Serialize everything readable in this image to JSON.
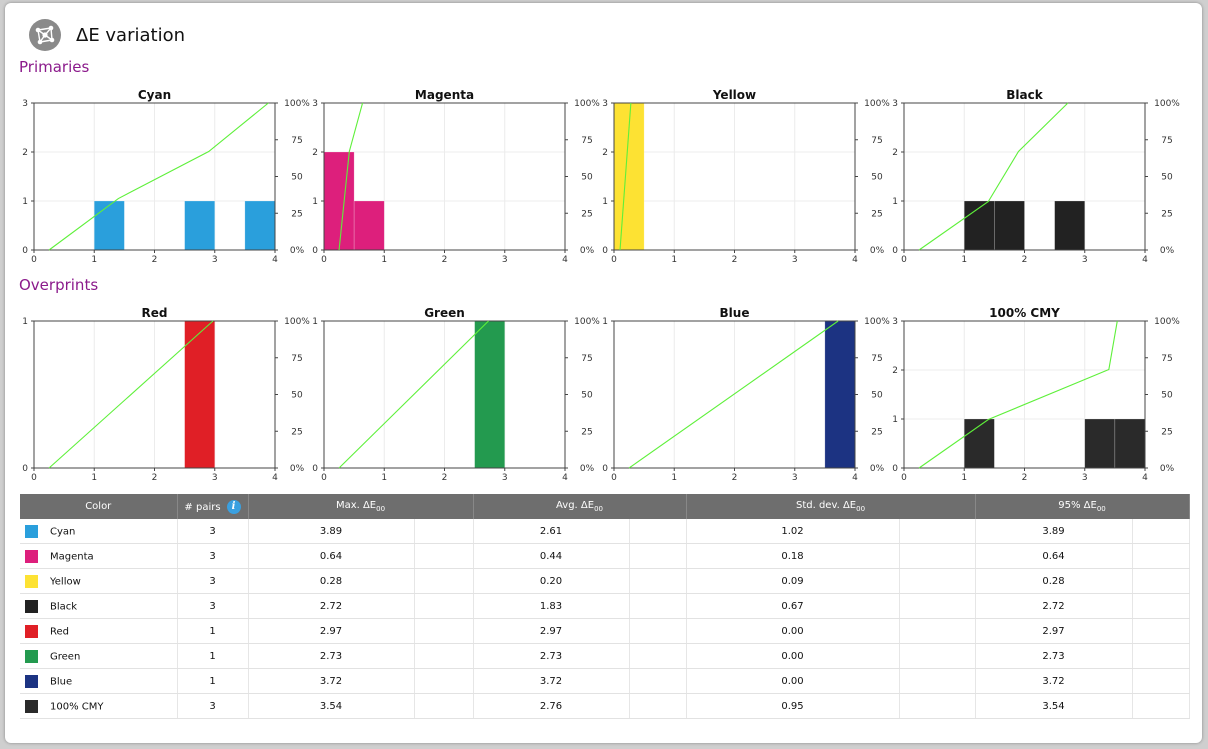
{
  "page": {
    "title": "ΔE variation"
  },
  "sections": {
    "primaries": "Primaries",
    "overprints": "Overprints"
  },
  "chart_data": [
    {
      "type": "bar",
      "title": "Cyan",
      "color": "#2a9fdc",
      "x_ticks": [
        0,
        1,
        2,
        3,
        4
      ],
      "y_ticks": [
        0,
        1,
        2,
        3
      ],
      "xlim": [
        0,
        4
      ],
      "ylim": [
        0,
        3
      ],
      "y2_ticks": [
        "0%",
        "25",
        "50",
        "75",
        "100%"
      ],
      "bars": [
        {
          "x0": 1.0,
          "x1": 1.5,
          "count": 1
        },
        {
          "x0": 2.5,
          "x1": 3.0,
          "count": 1
        },
        {
          "x0": 3.5,
          "x1": 4.0,
          "count": 1
        }
      ],
      "cumulative": [
        [
          0.25,
          0
        ],
        [
          1.4,
          0.35
        ],
        [
          2.9,
          0.67
        ],
        [
          3.89,
          1.0
        ]
      ]
    },
    {
      "type": "bar",
      "title": "Magenta",
      "color": "#dd1f7c",
      "x_ticks": [
        0,
        1,
        2,
        3,
        4
      ],
      "y_ticks": [
        0,
        1,
        2,
        3
      ],
      "xlim": [
        0,
        4
      ],
      "ylim": [
        0,
        3
      ],
      "y2_ticks": [
        "0%",
        "25",
        "50",
        "75",
        "100%"
      ],
      "bars": [
        {
          "x0": 0.0,
          "x1": 0.5,
          "count": 2
        },
        {
          "x0": 0.5,
          "x1": 1.0,
          "count": 1
        }
      ],
      "cumulative": [
        [
          0.25,
          0
        ],
        [
          0.42,
          0.67
        ],
        [
          0.64,
          1.0
        ]
      ]
    },
    {
      "type": "bar",
      "title": "Yellow",
      "color": "#fde233",
      "x_ticks": [
        0,
        1,
        2,
        3,
        4
      ],
      "y_ticks": [
        0,
        1,
        2,
        3
      ],
      "xlim": [
        0,
        4
      ],
      "ylim": [
        0,
        3
      ],
      "y2_ticks": [
        "0%",
        "25",
        "50",
        "75",
        "100%"
      ],
      "bars": [
        {
          "x0": 0.0,
          "x1": 0.5,
          "count": 3
        }
      ],
      "cumulative": [
        [
          0.1,
          0
        ],
        [
          0.28,
          1.0
        ]
      ]
    },
    {
      "type": "bar",
      "title": "Black",
      "color": "#222222",
      "x_ticks": [
        0,
        1,
        2,
        3,
        4
      ],
      "y_ticks": [
        0,
        1,
        2,
        3
      ],
      "xlim": [
        0,
        4
      ],
      "ylim": [
        0,
        3
      ],
      "y2_ticks": [
        "0%",
        "25",
        "50",
        "75",
        "100%"
      ],
      "bars": [
        {
          "x0": 1.0,
          "x1": 1.5,
          "count": 1
        },
        {
          "x0": 1.5,
          "x1": 2.0,
          "count": 1
        },
        {
          "x0": 2.5,
          "x1": 3.0,
          "count": 1
        }
      ],
      "cumulative": [
        [
          0.25,
          0
        ],
        [
          1.4,
          0.33
        ],
        [
          1.9,
          0.67
        ],
        [
          2.72,
          1.0
        ]
      ]
    },
    {
      "type": "bar",
      "title": "Red",
      "color": "#e01f26",
      "x_ticks": [
        0,
        1,
        2,
        3,
        4
      ],
      "y_ticks": [
        0,
        1
      ],
      "xlim": [
        0,
        4
      ],
      "ylim": [
        0,
        1
      ],
      "y2_ticks": [
        "0%",
        "25",
        "50",
        "75",
        "100%"
      ],
      "bars": [
        {
          "x0": 2.5,
          "x1": 3.0,
          "count": 1
        }
      ],
      "cumulative": [
        [
          0.25,
          0
        ],
        [
          2.97,
          1.0
        ]
      ]
    },
    {
      "type": "bar",
      "title": "Green",
      "color": "#239a4f",
      "x_ticks": [
        0,
        1,
        2,
        3,
        4
      ],
      "y_ticks": [
        0,
        1
      ],
      "xlim": [
        0,
        4
      ],
      "ylim": [
        0,
        1
      ],
      "y2_ticks": [
        "0%",
        "25",
        "50",
        "75",
        "100%"
      ],
      "bars": [
        {
          "x0": 2.5,
          "x1": 3.0,
          "count": 1
        }
      ],
      "cumulative": [
        [
          0.25,
          0
        ],
        [
          2.73,
          1.0
        ]
      ]
    },
    {
      "type": "bar",
      "title": "Blue",
      "color": "#1c3382",
      "x_ticks": [
        0,
        1,
        2,
        3,
        4
      ],
      "y_ticks": [
        0,
        1
      ],
      "xlim": [
        0,
        4
      ],
      "ylim": [
        0,
        1
      ],
      "y2_ticks": [
        "0%",
        "25",
        "50",
        "75",
        "100%"
      ],
      "bars": [
        {
          "x0": 3.5,
          "x1": 4.0,
          "count": 1
        }
      ],
      "cumulative": [
        [
          0.25,
          0
        ],
        [
          3.72,
          1.0
        ]
      ]
    },
    {
      "type": "bar",
      "title": "100% CMY",
      "color": "#2a2a2a",
      "x_ticks": [
        0,
        1,
        2,
        3,
        4
      ],
      "y_ticks": [
        0,
        1,
        2,
        3
      ],
      "xlim": [
        0,
        4
      ],
      "ylim": [
        0,
        3
      ],
      "y2_ticks": [
        "0%",
        "25",
        "50",
        "75",
        "100%"
      ],
      "bars": [
        {
          "x0": 1.0,
          "x1": 1.5,
          "count": 1
        },
        {
          "x0": 3.0,
          "x1": 3.5,
          "count": 1
        },
        {
          "x0": 3.5,
          "x1": 4.0,
          "count": 1
        }
      ],
      "cumulative": [
        [
          0.25,
          0
        ],
        [
          1.4,
          0.33
        ],
        [
          3.4,
          0.67
        ],
        [
          3.54,
          1.0
        ]
      ]
    }
  ],
  "table": {
    "headers": {
      "color": "Color",
      "pairs": "# pairs",
      "max": "Max. ΔE",
      "avg": "Avg. ΔE",
      "std": "Std. dev. ΔE",
      "p95": "95% ΔE",
      "sub": "00",
      "info": "i"
    },
    "rows": [
      {
        "name": "Cyan",
        "swatch": "#2a9fdc",
        "pairs": "3",
        "max": "3.89",
        "avg": "2.61",
        "std": "1.02",
        "p95": "3.89"
      },
      {
        "name": "Magenta",
        "swatch": "#dd1f7c",
        "pairs": "3",
        "max": "0.64",
        "avg": "0.44",
        "std": "0.18",
        "p95": "0.64"
      },
      {
        "name": "Yellow",
        "swatch": "#fde233",
        "pairs": "3",
        "max": "0.28",
        "avg": "0.20",
        "std": "0.09",
        "p95": "0.28"
      },
      {
        "name": "Black",
        "swatch": "#222222",
        "pairs": "3",
        "max": "2.72",
        "avg": "1.83",
        "std": "0.67",
        "p95": "2.72"
      },
      {
        "name": "Red",
        "swatch": "#e01f26",
        "pairs": "1",
        "max": "2.97",
        "avg": "2.97",
        "std": "0.00",
        "p95": "2.97"
      },
      {
        "name": "Green",
        "swatch": "#239a4f",
        "pairs": "1",
        "max": "2.73",
        "avg": "2.73",
        "std": "0.00",
        "p95": "2.73"
      },
      {
        "name": "Blue",
        "swatch": "#1c3382",
        "pairs": "1",
        "max": "3.72",
        "avg": "3.72",
        "std": "0.00",
        "p95": "3.72"
      },
      {
        "name": "100% CMY",
        "swatch": "#2a2a2a",
        "pairs": "3",
        "max": "3.54",
        "avg": "2.76",
        "std": "0.95",
        "p95": "3.54"
      }
    ]
  }
}
